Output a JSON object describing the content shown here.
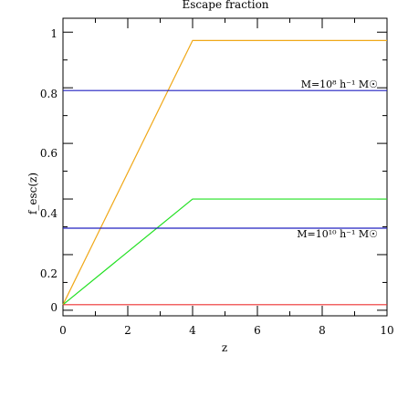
{
  "chart_data": {
    "type": "line",
    "title": "Escape fraction",
    "xlabel": "z",
    "ylabel": "f_esc(z)",
    "xlim": [
      0,
      10
    ],
    "ylim": [
      -0.02,
      1.05
    ],
    "x_ticks": [
      0,
      2,
      4,
      6,
      8,
      10
    ],
    "x_tick_labels": [
      "0",
      "2",
      "4",
      "6",
      "8",
      "10"
    ],
    "y_ticks": [
      0,
      0.2,
      0.4,
      0.6,
      0.8,
      1
    ],
    "y_tick_labels": [
      "0",
      "0.2",
      "0.4",
      "0.6",
      "0.8",
      "1"
    ],
    "grid": false,
    "series": [
      {
        "color": "#f0a818",
        "x": [
          0,
          4,
          10
        ],
        "y": [
          0.02,
          0.97,
          0.97
        ]
      },
      {
        "color": "#22e022",
        "x": [
          0,
          4,
          10
        ],
        "y": [
          0.02,
          0.4,
          0.4
        ]
      },
      {
        "color": "#ee3030",
        "x": [
          0,
          10
        ],
        "y": [
          0.02,
          0.02
        ]
      },
      {
        "color": "#2020c0",
        "x": [
          0,
          10
        ],
        "y": [
          0.79,
          0.79
        ]
      },
      {
        "color": "#2020c0",
        "x": [
          0,
          10
        ],
        "y": [
          0.295,
          0.295
        ]
      }
    ],
    "annotations": [
      {
        "text": "M=10⁸ h⁻¹ M☉",
        "x": 9.85,
        "y": 0.815
      },
      {
        "text": "M=10¹⁰ h⁻¹ M☉",
        "x": 9.85,
        "y": 0.315
      }
    ]
  }
}
